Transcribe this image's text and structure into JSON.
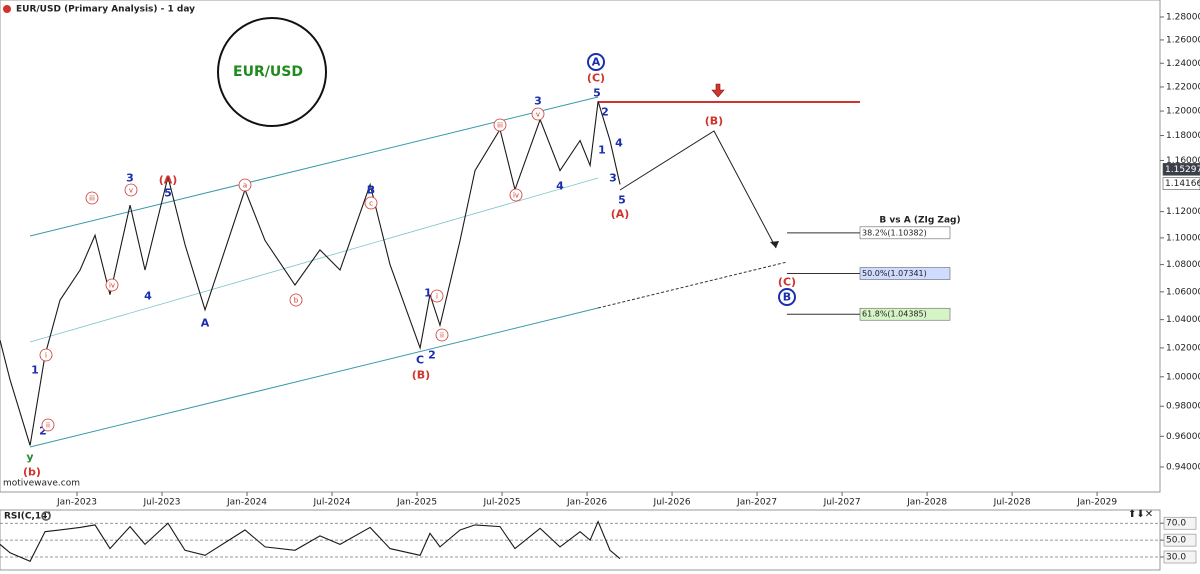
{
  "chart_data": [
    {
      "type": "line",
      "title": "EUR/USD (Primary Analysis) - 1 day",
      "watermark": "motivewave.com",
      "symbol_label": "EUR/USD",
      "fib_title": "B vs A (ZIg Zag)",
      "log_scale": true,
      "grid": false,
      "xlim": [
        2022.547,
        2029.37
      ],
      "xticks": [
        {
          "value": 2023,
          "label": "Jan-2023"
        },
        {
          "value": 2023.5,
          "label": "Jul-2023"
        },
        {
          "value": 2024,
          "label": "Jan-2024"
        },
        {
          "value": 2024.5,
          "label": "Jul-2024"
        },
        {
          "value": 2025,
          "label": "Jan-2025"
        },
        {
          "value": 2025.5,
          "label": "Jul-2025"
        },
        {
          "value": 2026,
          "label": "Jan-2026"
        },
        {
          "value": 2026.5,
          "label": "Jul-2026"
        },
        {
          "value": 2027,
          "label": "Jan-2027"
        },
        {
          "value": 2027.5,
          "label": "Jul-2027"
        },
        {
          "value": 2028,
          "label": "Jan-2028"
        },
        {
          "value": 2028.5,
          "label": "Jul-2028"
        },
        {
          "value": 2029,
          "label": "Jan-2029"
        }
      ],
      "ylim": [
        0.924,
        1.295
      ],
      "yticks": [
        {
          "value": 0.94,
          "label": "0.94000"
        },
        {
          "value": 0.96,
          "label": "0.96000"
        },
        {
          "value": 0.98,
          "label": "0.98000"
        },
        {
          "value": 1.0,
          "label": "1.00000"
        },
        {
          "value": 1.02,
          "label": "1.02000"
        },
        {
          "value": 1.04,
          "label": "1.04000"
        },
        {
          "value": 1.06,
          "label": "1.06000"
        },
        {
          "value": 1.08,
          "label": "1.08000"
        },
        {
          "value": 1.1,
          "label": "1.10000"
        },
        {
          "value": 1.12,
          "label": "1.12000"
        },
        {
          "value": 1.16,
          "label": "1.16000"
        },
        {
          "value": 1.18,
          "label": "1.18000"
        },
        {
          "value": 1.2,
          "label": "1.20000"
        },
        {
          "value": 1.22,
          "label": "1.22000"
        },
        {
          "value": 1.24,
          "label": "1.24000"
        },
        {
          "value": 1.26,
          "label": "1.26000"
        },
        {
          "value": 1.28,
          "label": "1.28000"
        }
      ],
      "price_markers": [
        {
          "value": 1.15297,
          "label": "1.15297",
          "color": "#3a3f4a"
        },
        {
          "value": 1.14166,
          "label": "1.14166",
          "color": "#ffffff"
        }
      ],
      "fib_levels": [
        {
          "value": 1.10382,
          "label": "38.2%(1.10382)",
          "color": "#ffffff"
        },
        {
          "value": 1.07341,
          "label": "50.0%(1.07341)",
          "color": "#cfdcff"
        },
        {
          "value": 1.04385,
          "label": "61.8%(1.04385)",
          "color": "#d6f5c6"
        }
      ],
      "x": [
        2022.547,
        2022.606,
        2022.724,
        2022.812,
        2022.9,
        2023.018,
        2023.106,
        2023.194,
        2023.312,
        2023.4,
        2023.535,
        2023.635,
        2023.753,
        2023.988,
        2024.106,
        2024.282,
        2024.429,
        2024.547,
        2024.724,
        2024.841,
        2025.018,
        2025.076,
        2025.135,
        2025.253,
        2025.341,
        2025.488,
        2025.576,
        2025.724,
        2025.841,
        2025.959,
        2026.018,
        2026.065,
        2026.135,
        2026.194
      ],
      "series": [
        {
          "name": "EUR/USD",
          "color": "#1a1a1a",
          "values": [
            1.0255,
            0.998,
            0.954,
            1.015,
            1.054,
            1.076,
            1.102,
            1.058,
            1.125,
            1.076,
            1.147,
            1.095,
            1.047,
            1.137,
            1.098,
            1.065,
            1.091,
            1.076,
            1.141,
            1.08,
            1.02,
            1.058,
            1.036,
            1.098,
            1.152,
            1.185,
            1.137,
            1.193,
            1.152,
            1.176,
            1.156,
            1.208,
            1.176,
            1.141
          ]
        }
      ],
      "wave_labels": [
        {
          "text": "(b)",
          "color": "#d0342c",
          "circled": false
        },
        {
          "text": "y",
          "color": "#2a8a2a",
          "circled": false
        },
        {
          "text": "1",
          "color": "#1a2fb0",
          "circled": false
        },
        {
          "text": "2",
          "color": "#1a2fb0",
          "circled": false
        },
        {
          "text": "i",
          "color": "#d0342c",
          "circled": true
        },
        {
          "text": "ii",
          "color": "#d0342c",
          "circled": true
        },
        {
          "text": "iii",
          "color": "#d0342c",
          "circled": true
        },
        {
          "text": "iv",
          "color": "#d0342c",
          "circled": true
        },
        {
          "text": "v",
          "color": "#d0342c",
          "circled": true
        },
        {
          "text": "3",
          "color": "#1a2fb0",
          "circled": false
        },
        {
          "text": "4",
          "color": "#1a2fb0",
          "circled": false
        },
        {
          "text": "5",
          "color": "#1a2fb0",
          "circled": false
        },
        {
          "text": "(A)",
          "color": "#d0342c",
          "circled": false
        },
        {
          "text": "a",
          "color": "#d0342c",
          "circled": true
        },
        {
          "text": "A",
          "color": "#1a2fb0",
          "circled": false
        },
        {
          "text": "b",
          "color": "#d0342c",
          "circled": true
        },
        {
          "text": "c",
          "color": "#d0342c",
          "circled": true
        },
        {
          "text": "B",
          "color": "#1a2fb0",
          "circled": false
        },
        {
          "text": "C",
          "color": "#1a2fb0",
          "circled": false
        },
        {
          "text": "(B)",
          "color": "#d0342c",
          "circled": false
        },
        {
          "text": "1",
          "color": "#1a2fb0",
          "circled": false
        },
        {
          "text": "i",
          "color": "#d0342c",
          "circled": true
        },
        {
          "text": "2",
          "color": "#1a2fb0",
          "circled": false
        },
        {
          "text": "ii",
          "color": "#d0342c",
          "circled": true
        },
        {
          "text": "iii",
          "color": "#d0342c",
          "circled": true
        },
        {
          "text": "iv",
          "color": "#d0342c",
          "circled": true
        },
        {
          "text": "v",
          "color": "#d0342c",
          "circled": true
        },
        {
          "text": "3",
          "color": "#1a2fb0",
          "circled": false
        },
        {
          "text": "4",
          "color": "#1a2fb0",
          "circled": false
        },
        {
          "text": "A",
          "color": "#1a2fb0",
          "circled": true
        },
        {
          "text": "(C)",
          "color": "#d0342c",
          "circled": false
        },
        {
          "text": "5",
          "color": "#1a2fb0",
          "circled": false
        },
        {
          "text": "2",
          "color": "#1a2fb0",
          "circled": false
        },
        {
          "text": "1",
          "color": "#1a2fb0",
          "circled": false
        },
        {
          "text": "4",
          "color": "#1a2fb0",
          "circled": false
        },
        {
          "text": "3",
          "color": "#1a2fb0",
          "circled": false
        },
        {
          "text": "5",
          "color": "#1a2fb0",
          "circled": false
        },
        {
          "text": "(A)",
          "color": "#d0342c",
          "circled": false
        },
        {
          "text": "(B)",
          "color": "#d0342c",
          "circled": false
        },
        {
          "text": "(C)",
          "color": "#d0342c",
          "circled": false
        },
        {
          "text": "B",
          "color": "#1a2fb0",
          "circled": true
        }
      ]
    },
    {
      "type": "line",
      "title": "RSI(C,14)",
      "log_scale": false,
      "grid": false,
      "xlim": [
        2022.547,
        2029.37
      ],
      "ylim": [
        17,
        75
      ],
      "yticks": [
        {
          "value": 30,
          "label": "30.0"
        },
        {
          "value": 50,
          "label": "50.0"
        },
        {
          "value": 70,
          "label": "70.0"
        }
      ],
      "x": [
        2022.547,
        2022.606,
        2022.724,
        2022.812,
        2022.9,
        2023.018,
        2023.106,
        2023.194,
        2023.312,
        2023.4,
        2023.535,
        2023.635,
        2023.753,
        2023.988,
        2024.106,
        2024.282,
        2024.429,
        2024.547,
        2024.724,
        2024.841,
        2025.018,
        2025.076,
        2025.135,
        2025.253,
        2025.341,
        2025.488,
        2025.576,
        2025.724,
        2025.841,
        2025.959,
        2026.018,
        2026.065,
        2026.135,
        2026.194
      ],
      "series": [
        {
          "name": "RSI",
          "color": "#1a1a1a",
          "values": [
            45,
            35,
            25,
            60,
            62,
            65,
            68,
            40,
            66,
            45,
            70,
            38,
            32,
            62,
            42,
            38,
            55,
            45,
            65,
            40,
            32,
            58,
            42,
            62,
            68,
            66,
            40,
            64,
            42,
            60,
            50,
            72,
            38,
            28
          ]
        }
      ]
    }
  ]
}
